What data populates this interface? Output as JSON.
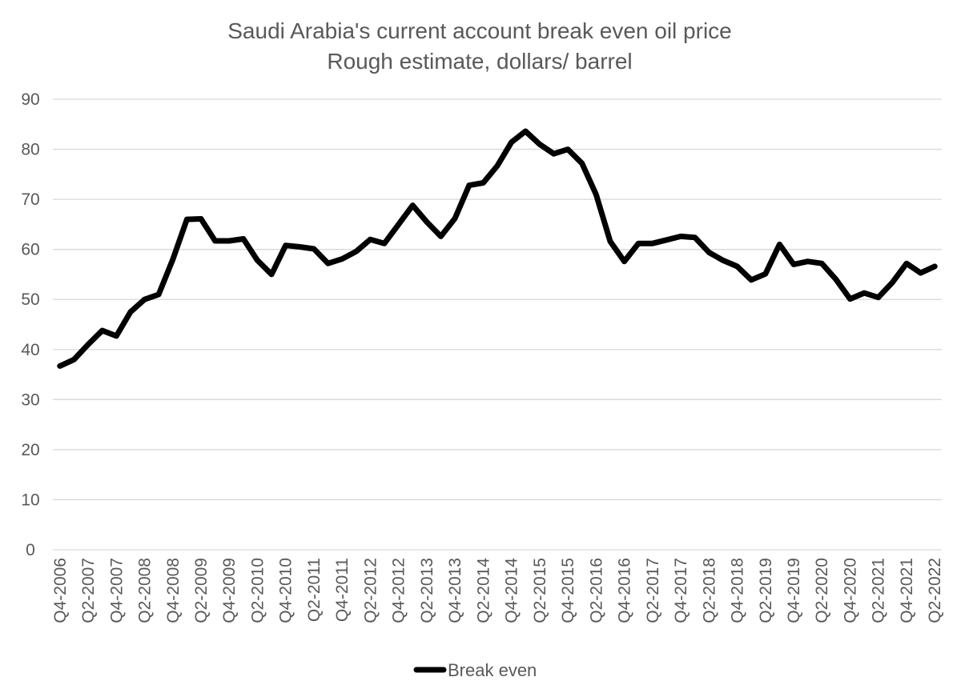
{
  "chart_data": {
    "type": "line",
    "title": "Saudi Arabia's current account break even oil price",
    "subtitle": "Rough estimate, dollars/ barrel",
    "xlabel": "",
    "ylabel": "",
    "ylim": [
      0,
      90
    ],
    "yticks": [
      0,
      10,
      20,
      30,
      40,
      50,
      60,
      70,
      80,
      90
    ],
    "grid": true,
    "legend_position": "bottom",
    "series_color": "#000000",
    "categories": [
      "Q4-2006",
      "Q1-2007",
      "Q2-2007",
      "Q3-2007",
      "Q4-2007",
      "Q1-2008",
      "Q2-2008",
      "Q3-2008",
      "Q4-2008",
      "Q1-2009",
      "Q2-2009",
      "Q3-2009",
      "Q4-2009",
      "Q1-2010",
      "Q2-2010",
      "Q3-2010",
      "Q4-2010",
      "Q1-2011",
      "Q2-2011",
      "Q3-2011",
      "Q4-2011",
      "Q1-2012",
      "Q2-2012",
      "Q3-2012",
      "Q4-2012",
      "Q1-2013",
      "Q2-2013",
      "Q3-2013",
      "Q4-2013",
      "Q1-2014",
      "Q2-2014",
      "Q3-2014",
      "Q4-2014",
      "Q1-2015",
      "Q2-2015",
      "Q3-2015",
      "Q4-2015",
      "Q1-2016",
      "Q2-2016",
      "Q3-2016",
      "Q4-2016",
      "Q1-2017",
      "Q2-2017",
      "Q3-2017",
      "Q4-2017",
      "Q1-2018",
      "Q2-2018",
      "Q3-2018",
      "Q4-2018",
      "Q1-2019",
      "Q2-2019",
      "Q3-2019",
      "Q4-2019",
      "Q1-2020",
      "Q2-2020",
      "Q3-2020",
      "Q4-2020",
      "Q1-2021",
      "Q2-2021",
      "Q3-2021",
      "Q4-2021",
      "Q1-2022",
      "Q2-2022"
    ],
    "tick_labels": [
      "Q4-2006",
      "Q2-2007",
      "Q4-2007",
      "Q2-2008",
      "Q4-2008",
      "Q2-2009",
      "Q4-2009",
      "Q2-2010",
      "Q4-2010",
      "Q2-2011",
      "Q4-2011",
      "Q2-2012",
      "Q4-2012",
      "Q2-2013",
      "Q4-2013",
      "Q2-2014",
      "Q4-2014",
      "Q2-2015",
      "Q4-2015",
      "Q2-2016",
      "Q4-2016",
      "Q2-2017",
      "Q4-2017",
      "Q2-2018",
      "Q4-2018",
      "Q2-2019",
      "Q4-2019",
      "Q2-2020",
      "Q4-2020",
      "Q2-2021",
      "Q4-2021",
      "Q2-2022"
    ],
    "series": [
      {
        "name": "Break even",
        "values": [
          36.7,
          38.0,
          41.0,
          43.8,
          42.7,
          47.5,
          50.0,
          51.0,
          58.0,
          66.0,
          66.1,
          61.7,
          61.7,
          62.1,
          57.8,
          55.0,
          60.8,
          60.5,
          60.1,
          57.2,
          58.1,
          59.6,
          62.0,
          61.2,
          65.0,
          68.8,
          65.5,
          62.6,
          66.2,
          72.8,
          73.3,
          76.7,
          81.4,
          83.6,
          81.0,
          79.1,
          80.0,
          77.2,
          71.0,
          61.6,
          57.6,
          61.2,
          61.2,
          61.9,
          62.6,
          62.4,
          59.4,
          57.8,
          56.6,
          53.9,
          55.1,
          61.0,
          57.0,
          57.6,
          57.2,
          54.0,
          50.1,
          51.3,
          50.4,
          53.4,
          57.2,
          55.3,
          56.6
        ]
      }
    ]
  }
}
